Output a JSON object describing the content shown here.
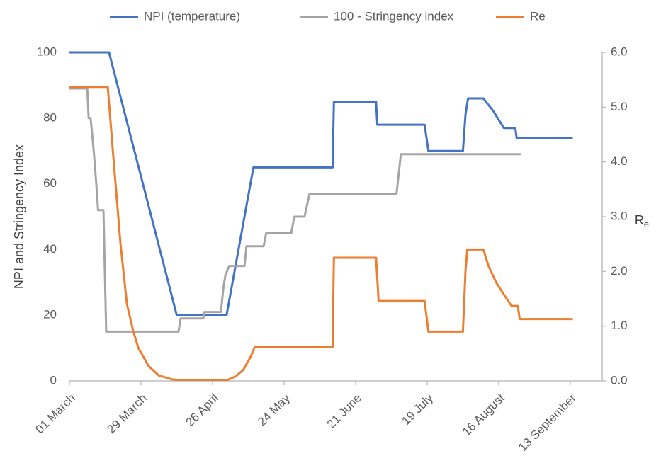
{
  "chart_data": {
    "type": "line",
    "ylabel": "NPI and Stringency Index",
    "y2label": "Re",
    "xlim": [
      0,
      208.5
    ],
    "xticks": [
      {
        "value": 0,
        "label": "01 March"
      },
      {
        "value": 28,
        "label": "29 March"
      },
      {
        "value": 56,
        "label": "26 April"
      },
      {
        "value": 84,
        "label": "24 May"
      },
      {
        "value": 112,
        "label": "21 June"
      },
      {
        "value": 140,
        "label": "19 July"
      },
      {
        "value": 168,
        "label": "16 August"
      },
      {
        "value": 196,
        "label": "13 September"
      }
    ],
    "ylim": [
      0,
      100
    ],
    "yticks": [
      0,
      20,
      40,
      60,
      80,
      100
    ],
    "y2lim": [
      0,
      6
    ],
    "y2ticks": [
      {
        "value": 0,
        "label": "0.0"
      },
      {
        "value": 1,
        "label": "1.0"
      },
      {
        "value": 2,
        "label": "2.0"
      },
      {
        "value": 3,
        "label": "3.0"
      },
      {
        "value": 4,
        "label": "4.0"
      },
      {
        "value": 5,
        "label": "5.0"
      },
      {
        "value": 6,
        "label": "6.0"
      }
    ],
    "legend": "top",
    "series": [
      {
        "name": "NPI (temperature)",
        "color": "#4472c4",
        "x": [
          0,
          15.5,
          42,
          61.5,
          72,
          103,
          103.5,
          120,
          120.5,
          139,
          140.5,
          154,
          155,
          156,
          162,
          166,
          170,
          174.5,
          175,
          197
        ],
        "values": [
          100,
          100,
          20,
          20,
          65,
          65,
          85,
          85,
          78,
          78,
          70,
          70,
          81,
          86,
          86,
          82,
          77,
          77,
          74,
          74
        ]
      },
      {
        "name": "100 - Stringency index",
        "color": "#a5a5a5",
        "x": [
          0,
          7,
          7.5,
          8.3,
          9.5,
          10.5,
          11.2,
          13.3,
          14.4,
          42.7,
          43.5,
          52.4,
          52.8,
          59.3,
          60.2,
          61,
          62.5,
          68.5,
          69.3,
          76,
          77,
          86.8,
          88,
          92,
          94,
          128,
          129.7,
          176.6
        ],
        "values": [
          89,
          89,
          80,
          80,
          70,
          60,
          52,
          52,
          15,
          15,
          19,
          19,
          21,
          21,
          28,
          32,
          35,
          35,
          41,
          41,
          45,
          45,
          50,
          50,
          57,
          57,
          69,
          69
        ]
      },
      {
        "name": "Re",
        "color": "#ed7d31",
        "axis": "y2",
        "x": [
          0,
          15,
          17,
          20,
          22.5,
          25,
          27,
          31,
          35,
          40,
          42,
          62,
          65,
          68,
          71,
          72.5,
          103,
          103.5,
          120,
          121,
          139,
          140.5,
          154,
          155,
          155.7,
          162,
          164,
          167,
          170,
          173,
          175.5,
          176.2,
          197
        ],
        "values": [
          5.37,
          5.37,
          4.2,
          2.5,
          1.4,
          0.9,
          0.6,
          0.27,
          0.1,
          0.03,
          0.02,
          0.02,
          0.08,
          0.2,
          0.45,
          0.62,
          0.62,
          2.25,
          2.25,
          1.46,
          1.46,
          0.9,
          0.9,
          2.0,
          2.4,
          2.4,
          2.1,
          1.8,
          1.58,
          1.37,
          1.37,
          1.13,
          1.13
        ]
      }
    ]
  }
}
